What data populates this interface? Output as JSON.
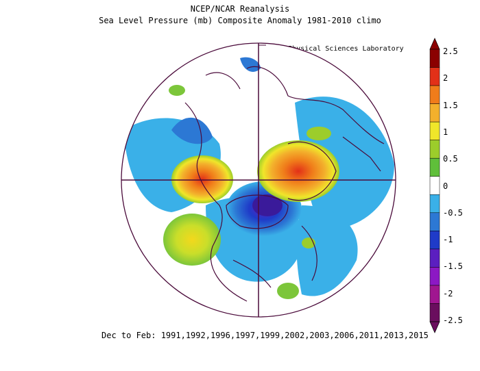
{
  "header": {
    "title": "NCEP/NCAR Reanalysis",
    "subtitle": "Sea Level Pressure (mb) Composite Anomaly 1981-2010 climo",
    "credit": "NOAA Physical Sciences Laboratory"
  },
  "footer": {
    "period": "Dec to Feb: 1991,1992,1996,1997,1999,2002,2003,2006,2011,2013,2015"
  },
  "colorbar": {
    "labels": [
      "2.5",
      "2",
      "1.5",
      "1",
      "0.5",
      "0",
      "-0.5",
      "-1",
      "-1.5",
      "-2",
      "-2.5"
    ],
    "colors": [
      "#8b0000",
      "#e23018",
      "#f07c1a",
      "#f3b02c",
      "#f0e62a",
      "#9ccd2b",
      "#5fbf3a",
      "#ffffff",
      "#3ab0e8",
      "#2c78d4",
      "#1f3bc8",
      "#5b1fc0",
      "#8c18c4",
      "#a01690",
      "#6a0e5e"
    ]
  },
  "map": {
    "projection": "polar stereographic (north pole)",
    "variable": "sea level pressure anomaly",
    "units": "mb"
  }
}
